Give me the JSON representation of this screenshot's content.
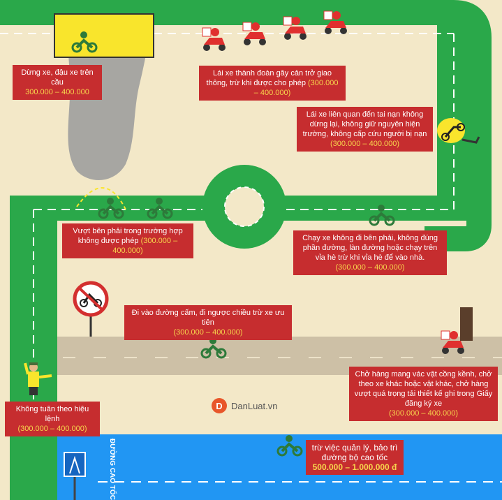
{
  "colors": {
    "road": "#2aa84a",
    "background": "#f3e8c8",
    "river": "#a7a6a2",
    "highway": "#2196f3",
    "box": "#c62d2f",
    "fine": "#f7d44c",
    "bridge": "#f9e52c",
    "scooter": "#e0302f"
  },
  "icons": [
    "motorbike-icon",
    "scooter-delivery-icon",
    "no-motorbike-sign-icon",
    "traffic-police-icon",
    "highway-sign-icon",
    "crash-icon"
  ],
  "boxes": {
    "bridge": {
      "text": "Dừng xe, đậu xe trên cầu",
      "fine": "300.000 – 400.000"
    },
    "convoy": {
      "text": "Lái xe thành đoàn gây cản trở giao thông, trừ khi được cho phép",
      "fine": "(300.000 – 400.000)"
    },
    "accident": {
      "text": "Lái xe liên quan đến tai nạn không dừng lại, không giữ nguyên hiện trường, không cấp cứu người bị nạn",
      "fine": "(300.000 – 400.000)"
    },
    "overtake": {
      "text": "Vượt bên phải trong trường hợp không được phép",
      "fine": "(300.000 – 400.000)"
    },
    "lane": {
      "text": "Chạy xe không đi bên phải, không đúng phần đường, làn đường hoặc chạy trên vỉa hè trừ khi vỉa hè để vào nhà.",
      "fine": "(300.000 – 400.000)"
    },
    "forbidden": {
      "text": "Đi vào đường cấm, đi ngược chiều trừ xe ưu tiên",
      "fine": "(300.000 – 400.000)"
    },
    "cargo": {
      "text": "Chở hàng mang vác vật cồng kềnh, chở theo xe khác hoặc vật khác, chở hàng vượt quá trọng tải thiết kế ghi trong Giấy đăng ký xe",
      "fine": "(300.000 – 400.000)"
    },
    "police": {
      "text": "Không tuân theo hiệu lệnh",
      "fine": "(300.000 – 400.000)"
    },
    "highway": {
      "text": "trừ việc quản lý, bảo trì đường bộ cao tốc",
      "fine": "500.000 – 1.000.000 đ"
    }
  },
  "highway_label": "ĐƯỜNG CAO TỐC",
  "brand": {
    "mark": "D",
    "name": "DanLuat.vn"
  }
}
